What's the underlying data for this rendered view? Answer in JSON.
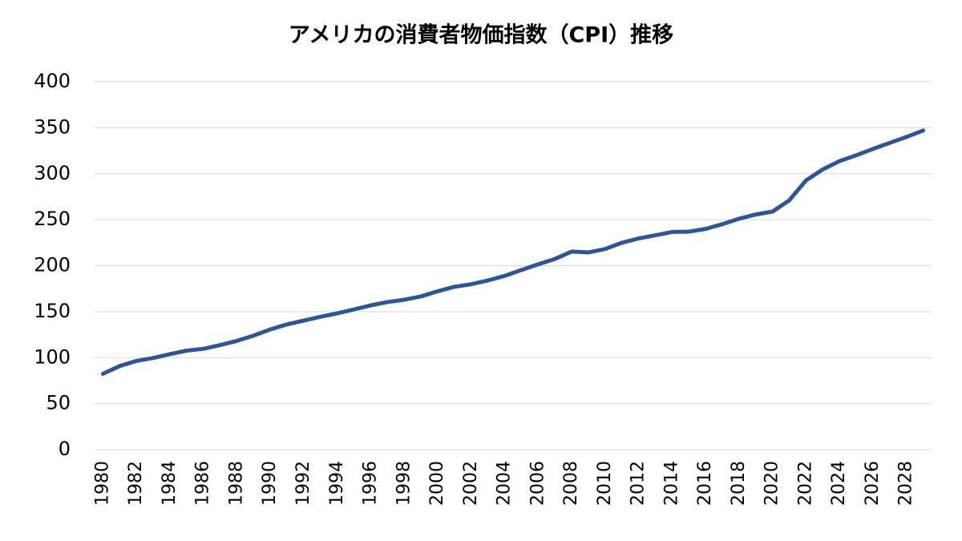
{
  "chart_data": {
    "type": "line",
    "title": "アメリカの消費者物価指数（CPI）推移",
    "categories": [
      "1980",
      null,
      "1982",
      null,
      "1984",
      null,
      "1986",
      null,
      "1988",
      null,
      "1990",
      null,
      "1992",
      null,
      "1994",
      null,
      "1996",
      null,
      "1998",
      null,
      "2000",
      null,
      "2002",
      null,
      "2004",
      null,
      "2006",
      null,
      "2008",
      null,
      "2010",
      null,
      "2012",
      null,
      "2014",
      null,
      "2016",
      null,
      "2018",
      null,
      "2020",
      null,
      "2022",
      null,
      "2024",
      null,
      "2026",
      null,
      "2028",
      null
    ],
    "values": [
      82.4,
      90.9,
      96.5,
      99.6,
      103.9,
      107.6,
      109.6,
      113.6,
      118.3,
      124.0,
      130.7,
      136.2,
      140.3,
      144.5,
      148.2,
      152.4,
      156.9,
      160.5,
      163.0,
      166.6,
      172.2,
      177.1,
      179.9,
      184.0,
      188.9,
      195.3,
      201.6,
      207.3,
      215.3,
      214.5,
      218.1,
      224.9,
      229.6,
      233.0,
      236.7,
      237.0,
      240.0,
      245.1,
      251.1,
      255.7,
      258.8,
      271.0,
      292.7,
      304.7,
      313.7,
      320.0,
      327.0,
      333.5,
      340.0,
      347.0
    ],
    "color": "#2f5597",
    "ylim": [
      0,
      400
    ],
    "yticks": [
      0,
      50,
      100,
      150,
      200,
      250,
      300,
      350,
      400
    ],
    "grid": true
  }
}
